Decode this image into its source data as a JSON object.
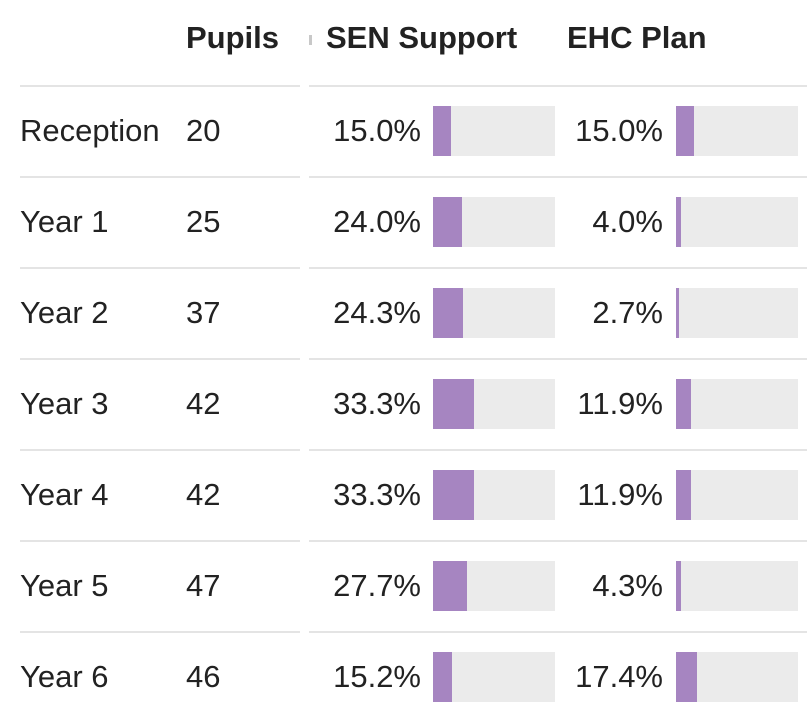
{
  "chart_data": {
    "type": "table",
    "columns": [
      "",
      "Pupils",
      "SEN Support",
      "EHC Plan"
    ],
    "bar_color": "#a685c1",
    "track_color": "#ebebeb",
    "rows": [
      {
        "year": "Reception",
        "pupils": "20",
        "sen_support": "15.0%",
        "sen_value": 15.0,
        "ehc_plan": "15.0%",
        "ehc_value": 15.0
      },
      {
        "year": "Year 1",
        "pupils": "25",
        "sen_support": "24.0%",
        "sen_value": 24.0,
        "ehc_plan": "4.0%",
        "ehc_value": 4.0
      },
      {
        "year": "Year 2",
        "pupils": "37",
        "sen_support": "24.3%",
        "sen_value": 24.3,
        "ehc_plan": "2.7%",
        "ehc_value": 2.7
      },
      {
        "year": "Year 3",
        "pupils": "42",
        "sen_support": "33.3%",
        "sen_value": 33.3,
        "ehc_plan": "11.9%",
        "ehc_value": 11.9
      },
      {
        "year": "Year 4",
        "pupils": "42",
        "sen_support": "33.3%",
        "sen_value": 33.3,
        "ehc_plan": "11.9%",
        "ehc_value": 11.9
      },
      {
        "year": "Year 5",
        "pupils": "47",
        "sen_support": "27.7%",
        "sen_value": 27.7,
        "ehc_plan": "4.3%",
        "ehc_value": 4.3
      },
      {
        "year": "Year 6",
        "pupils": "46",
        "sen_support": "15.2%",
        "sen_value": 15.2,
        "ehc_plan": "17.4%",
        "ehc_value": 17.4
      }
    ],
    "bar_scale_max": 100
  }
}
